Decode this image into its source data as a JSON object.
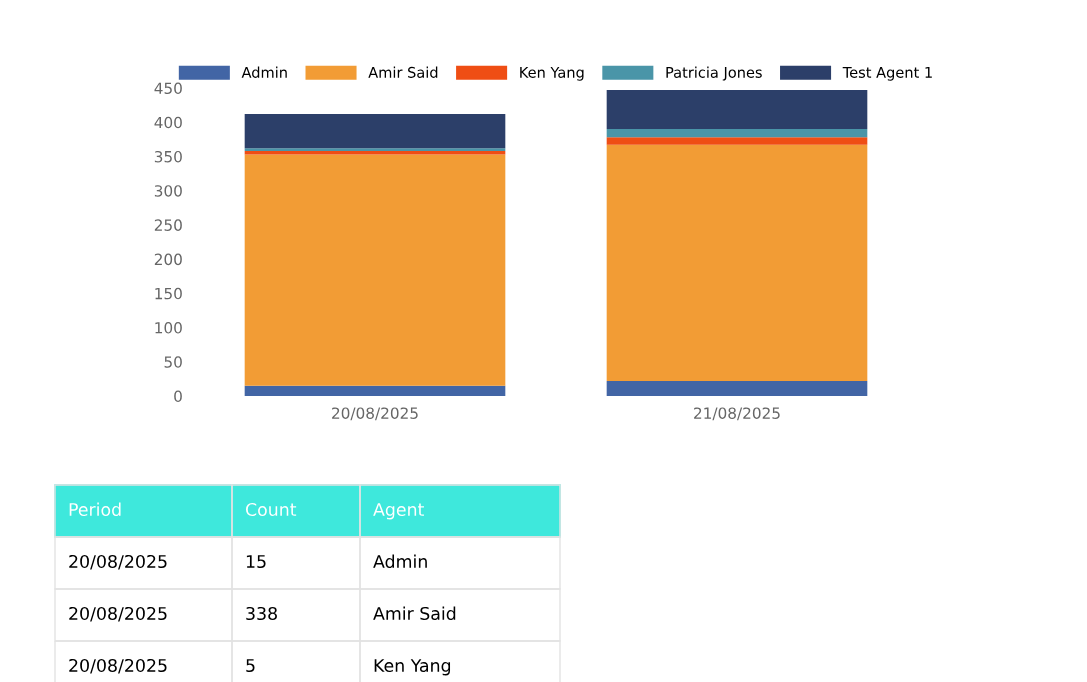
{
  "chart_data": [
    {
      "type": "bar",
      "stacked": true,
      "categories": [
        "20/08/2025",
        "21/08/2025"
      ],
      "series": [
        {
          "name": "Admin",
          "color": "#4265a5",
          "values": [
            15,
            22
          ]
        },
        {
          "name": "Amir Said",
          "color": "#f29c35",
          "values": [
            338,
            345
          ]
        },
        {
          "name": "Ken Yang",
          "color": "#ef4e14",
          "values": [
            5,
            11
          ]
        },
        {
          "name": "Patricia Jones",
          "color": "#4a95a8",
          "values": [
            4,
            12
          ]
        },
        {
          "name": "Test Agent 1",
          "color": "#2c3f69",
          "values": [
            50,
            57
          ]
        }
      ],
      "ylim": [
        0,
        450
      ],
      "yticks": [
        0,
        50,
        100,
        150,
        200,
        250,
        300,
        350,
        400,
        450
      ],
      "grid": false,
      "legend": "top"
    },
    {
      "type": "other",
      "annotations": [
        "Period",
        "Count",
        "Agent",
        "20/08/2025",
        "15",
        "Admin",
        "20/08/2025",
        "338",
        "Amir Said",
        "20/08/2025",
        "5",
        "Ken Yang"
      ]
    }
  ]
}
